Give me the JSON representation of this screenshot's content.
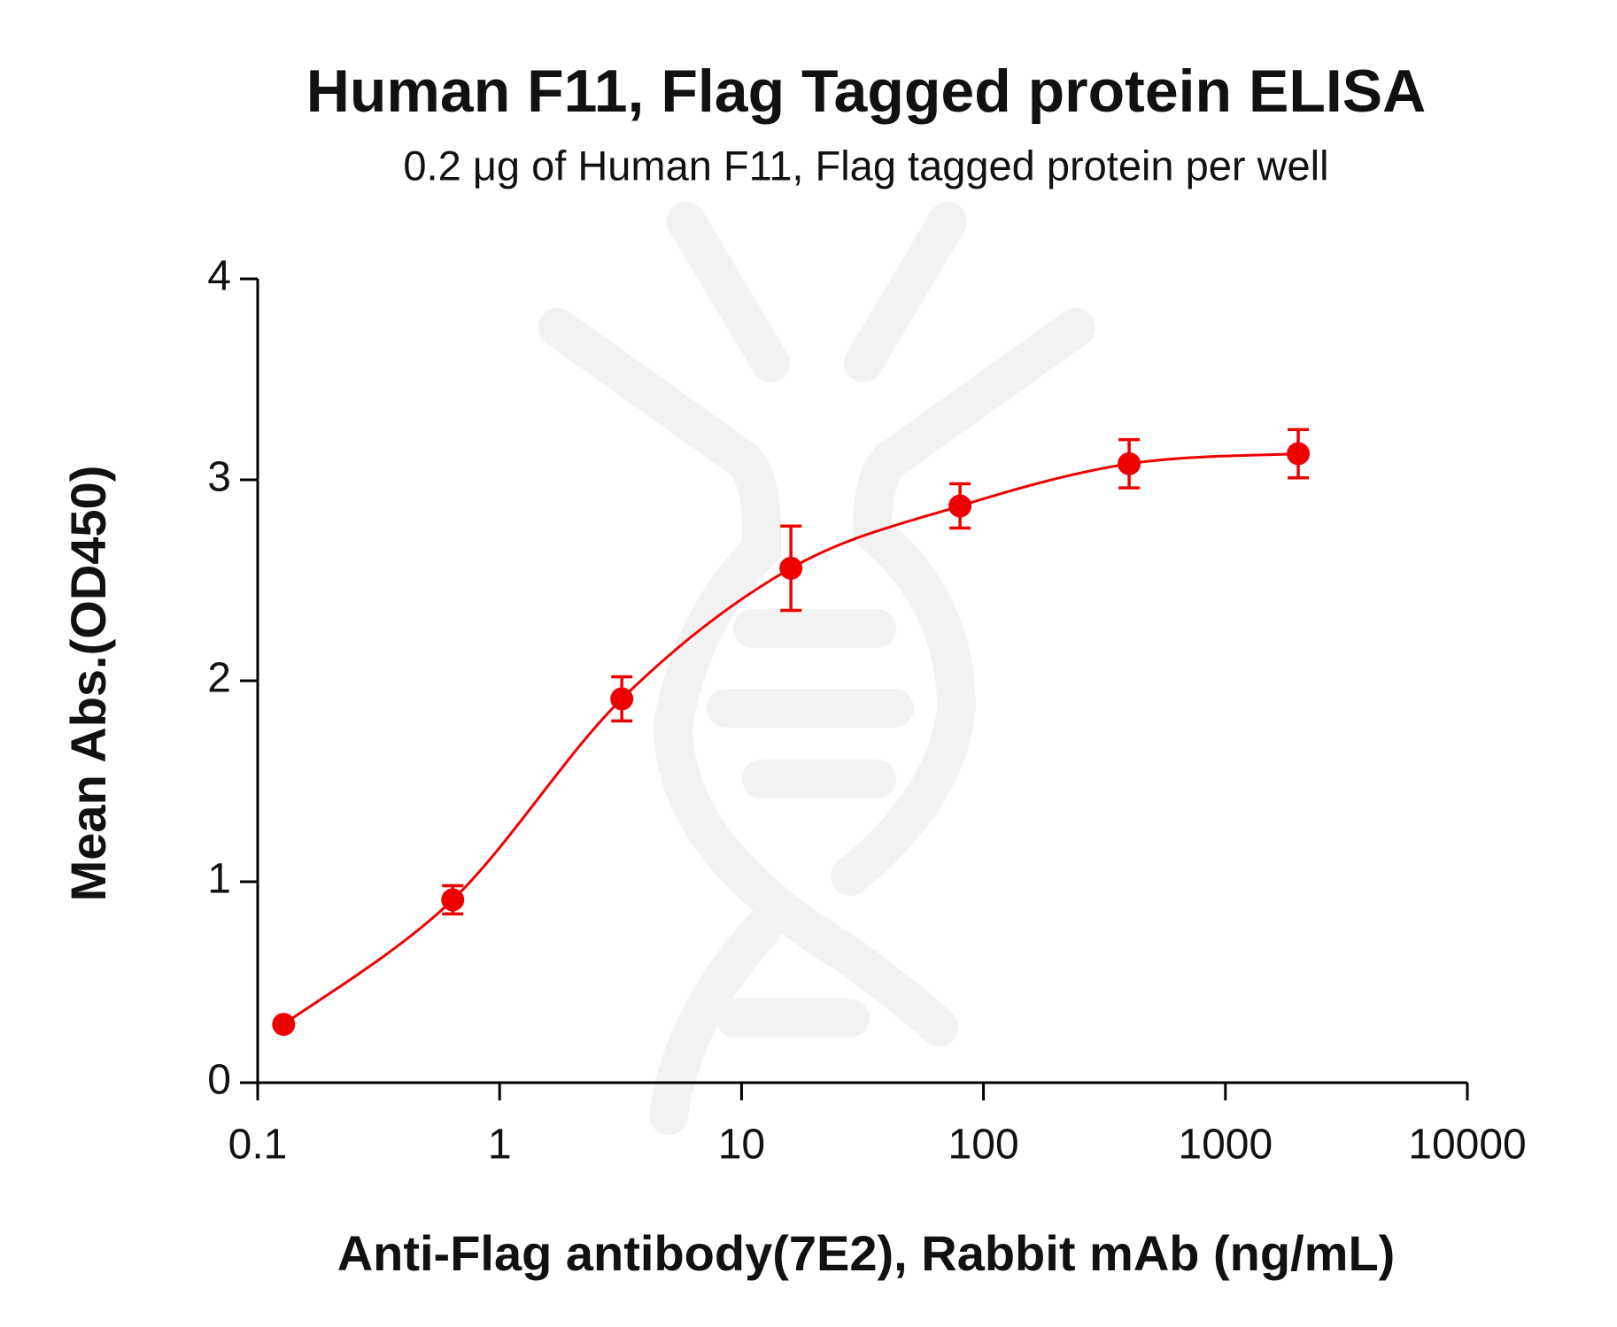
{
  "chart_data": {
    "type": "scatter",
    "title": "Human F11, Flag Tagged protein ELISA",
    "subtitle": "0.2 μg of Human F11, Flag tagged protein per well",
    "x_label": "Anti-Flag antibody(7E2), Rabbit mAb (ng/mL)",
    "y_label": "Mean Abs.(OD450)",
    "xscale": "log",
    "xlim": [
      0.1,
      10000
    ],
    "xticks": [
      0.1,
      1,
      10,
      100,
      1000,
      10000
    ],
    "ylim": [
      0,
      4
    ],
    "yticks": [
      0,
      1,
      2,
      3,
      4
    ],
    "grid": false,
    "x": [
      0.128,
      0.64,
      3.2,
      16,
      80,
      400,
      2000
    ],
    "series": [
      {
        "color": "#ee0000",
        "values": [
          0.29,
          0.91,
          1.91,
          2.56,
          2.87,
          3.08,
          3.13
        ],
        "errors": [
          0.01,
          0.07,
          0.11,
          0.21,
          0.11,
          0.12,
          0.12
        ]
      }
    ]
  }
}
